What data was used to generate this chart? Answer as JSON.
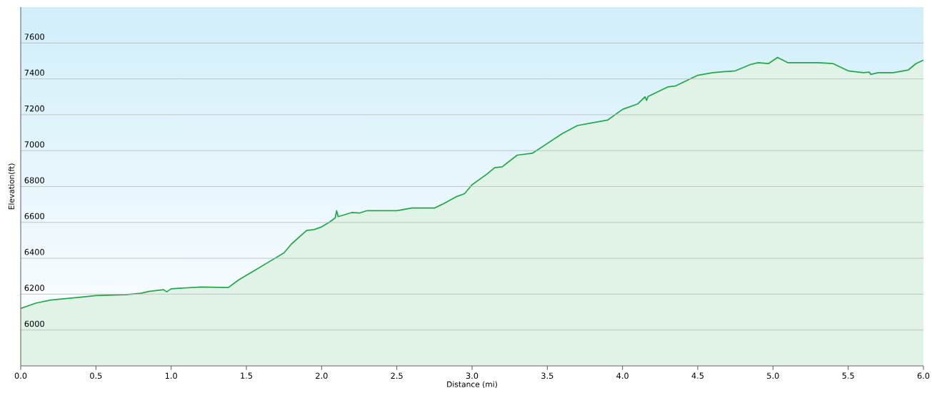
{
  "chart_data": {
    "type": "area",
    "xlabel": "Distance  (mi)",
    "ylabel": "Elevation(ft)",
    "color": "#22a84a",
    "grid": "y",
    "xlim": [
      0,
      6
    ],
    "ylim": [
      5800,
      7800
    ],
    "xticks": [
      {
        "value": 0,
        "label": "0.0"
      },
      {
        "value": 0.5,
        "label": "0.5"
      },
      {
        "value": 1,
        "label": "1.0"
      },
      {
        "value": 1.5,
        "label": "1.5"
      },
      {
        "value": 2,
        "label": "2.0"
      },
      {
        "value": 2.5,
        "label": "2.5"
      },
      {
        "value": 3,
        "label": "3.0"
      },
      {
        "value": 3.5,
        "label": "3.5"
      },
      {
        "value": 4,
        "label": "4.0"
      },
      {
        "value": 4.5,
        "label": "4.5"
      },
      {
        "value": 5,
        "label": "5.0"
      },
      {
        "value": 5.5,
        "label": "5.5"
      },
      {
        "value": 6,
        "label": "6.0"
      }
    ],
    "yticks": [
      6000,
      6200,
      6400,
      6600,
      6800,
      7000,
      7200,
      7400,
      7600
    ],
    "x": [
      0,
      0.1,
      0.2,
      0.3,
      0.4,
      0.5,
      0.7,
      0.8,
      0.85,
      0.95,
      0.97,
      1.0,
      1.2,
      1.38,
      1.45,
      1.55,
      1.65,
      1.75,
      1.8,
      1.9,
      1.95,
      2.0,
      2.05,
      2.09,
      2.1,
      2.11,
      2.2,
      2.25,
      2.3,
      2.5,
      2.6,
      2.75,
      2.8,
      2.9,
      2.95,
      3.0,
      3.1,
      3.15,
      3.2,
      3.3,
      3.4,
      3.5,
      3.6,
      3.7,
      3.8,
      3.9,
      4.0,
      4.1,
      4.15,
      4.16,
      4.17,
      4.3,
      4.35,
      4.5,
      4.6,
      4.75,
      4.85,
      4.9,
      4.97,
      5.03,
      5.1,
      5.3,
      5.4,
      5.5,
      5.6,
      5.64,
      5.65,
      5.7,
      5.8,
      5.9,
      5.95,
      6.0
    ],
    "values": [
      6120,
      6150,
      6167,
      6175,
      6183,
      6192,
      6197,
      6205,
      6215,
      6225,
      6213,
      6230,
      6240,
      6237,
      6280,
      6330,
      6380,
      6430,
      6480,
      6555,
      6560,
      6575,
      6600,
      6625,
      6665,
      6632,
      6655,
      6652,
      6665,
      6665,
      6680,
      6680,
      6700,
      6745,
      6760,
      6810,
      6870,
      6905,
      6910,
      6975,
      6985,
      7040,
      7095,
      7140,
      7155,
      7170,
      7230,
      7260,
      7300,
      7280,
      7302,
      7355,
      7360,
      7420,
      7435,
      7445,
      7480,
      7490,
      7485,
      7520,
      7490,
      7490,
      7485,
      7445,
      7435,
      7438,
      7425,
      7435,
      7435,
      7450,
      7485,
      7505
    ]
  }
}
